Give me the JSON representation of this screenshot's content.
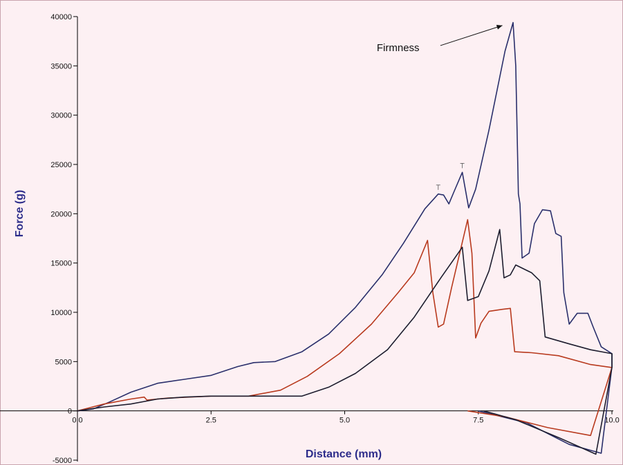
{
  "chart_data": {
    "type": "line",
    "xlabel": "Distance (mm)",
    "ylabel": "Force (g)",
    "xlim": [
      0,
      10
    ],
    "ylim": [
      -5000,
      40000
    ],
    "x_ticks": [
      "0.0",
      "2.5",
      "5.0",
      "7.5",
      "10.0"
    ],
    "x_tick_values": [
      0,
      2.5,
      5,
      7.5,
      10
    ],
    "y_ticks": [
      "-5000",
      "0",
      "5000",
      "10000",
      "15000",
      "20000",
      "25000",
      "30000",
      "35000",
      "40000"
    ],
    "y_tick_values": [
      -5000,
      0,
      5000,
      10000,
      15000,
      20000,
      25000,
      30000,
      35000,
      40000
    ],
    "grid": false,
    "annotations": [
      {
        "text": "Firmness",
        "x": 5.6,
        "y": 36500,
        "arrow_to": [
          7.95,
          39100
        ]
      }
    ],
    "series": [
      {
        "color": "#2a2f6b",
        "points": [
          [
            0,
            0
          ],
          [
            0.3,
            200
          ],
          [
            0.6,
            900
          ],
          [
            1.0,
            1900
          ],
          [
            1.5,
            2800
          ],
          [
            2.0,
            3200
          ],
          [
            2.5,
            3600
          ],
          [
            3.0,
            4500
          ],
          [
            3.3,
            4900
          ],
          [
            3.7,
            5000
          ],
          [
            4.2,
            6000
          ],
          [
            4.7,
            7800
          ],
          [
            5.2,
            10500
          ],
          [
            5.7,
            13800
          ],
          [
            6.1,
            17000
          ],
          [
            6.5,
            20500
          ],
          [
            6.75,
            22000
          ],
          [
            6.85,
            21900
          ],
          [
            6.95,
            21000
          ],
          [
            7.05,
            22300
          ],
          [
            7.2,
            24200
          ],
          [
            7.32,
            20600
          ],
          [
            7.45,
            22500
          ],
          [
            7.7,
            28500
          ],
          [
            8.0,
            36500
          ],
          [
            8.15,
            39400
          ],
          [
            8.2,
            35000
          ],
          [
            8.25,
            22000
          ],
          [
            8.28,
            21000
          ],
          [
            8.32,
            15500
          ],
          [
            8.45,
            16000
          ],
          [
            8.55,
            19000
          ],
          [
            8.7,
            20400
          ],
          [
            8.85,
            20300
          ],
          [
            8.95,
            18000
          ],
          [
            9.05,
            17700
          ],
          [
            9.1,
            12000
          ],
          [
            9.2,
            8800
          ],
          [
            9.35,
            9900
          ],
          [
            9.55,
            9900
          ],
          [
            9.65,
            8500
          ],
          [
            9.8,
            6500
          ],
          [
            10.0,
            5800
          ],
          [
            10.0,
            4500
          ],
          [
            9.8,
            -4300
          ],
          [
            9.2,
            -3400
          ],
          [
            8.4,
            -1200
          ],
          [
            7.5,
            0
          ]
        ]
      },
      {
        "color": "#b83a1e",
        "points": [
          [
            0,
            0
          ],
          [
            0.5,
            700
          ],
          [
            1.0,
            1200
          ],
          [
            1.25,
            1400
          ],
          [
            1.3,
            1100
          ],
          [
            1.7,
            1300
          ],
          [
            2.5,
            1500
          ],
          [
            3.2,
            1500
          ],
          [
            3.8,
            2100
          ],
          [
            4.3,
            3500
          ],
          [
            4.9,
            5800
          ],
          [
            5.5,
            8800
          ],
          [
            6.0,
            12000
          ],
          [
            6.3,
            14000
          ],
          [
            6.55,
            17300
          ],
          [
            6.65,
            12000
          ],
          [
            6.75,
            8500
          ],
          [
            6.85,
            8800
          ],
          [
            7.0,
            12500
          ],
          [
            7.3,
            19400
          ],
          [
            7.38,
            16000
          ],
          [
            7.45,
            7400
          ],
          [
            7.55,
            8900
          ],
          [
            7.7,
            10100
          ],
          [
            7.95,
            10300
          ],
          [
            8.1,
            10400
          ],
          [
            8.18,
            6000
          ],
          [
            8.5,
            5900
          ],
          [
            9.0,
            5600
          ],
          [
            9.6,
            4700
          ],
          [
            10.0,
            4400
          ],
          [
            9.6,
            -2500
          ],
          [
            8.8,
            -1700
          ],
          [
            8.0,
            -600
          ],
          [
            7.3,
            0
          ]
        ]
      },
      {
        "color": "#1d1d2e",
        "points": [
          [
            0,
            0
          ],
          [
            0.5,
            400
          ],
          [
            1.0,
            700
          ],
          [
            1.5,
            1200
          ],
          [
            2.0,
            1400
          ],
          [
            2.5,
            1500
          ],
          [
            3.5,
            1500
          ],
          [
            4.2,
            1500
          ],
          [
            4.7,
            2400
          ],
          [
            5.2,
            3800
          ],
          [
            5.8,
            6200
          ],
          [
            6.3,
            9500
          ],
          [
            6.8,
            13500
          ],
          [
            7.2,
            16600
          ],
          [
            7.3,
            11200
          ],
          [
            7.5,
            11600
          ],
          [
            7.7,
            14200
          ],
          [
            7.9,
            18400
          ],
          [
            7.98,
            13500
          ],
          [
            8.1,
            13800
          ],
          [
            8.2,
            14800
          ],
          [
            8.5,
            14000
          ],
          [
            8.65,
            13200
          ],
          [
            8.75,
            7500
          ],
          [
            9.2,
            6800
          ],
          [
            9.6,
            6200
          ],
          [
            10.0,
            5800
          ],
          [
            10.0,
            4400
          ],
          [
            9.7,
            -4400
          ],
          [
            9.0,
            -2700
          ],
          [
            8.2,
            -900
          ],
          [
            7.6,
            0
          ]
        ]
      }
    ]
  }
}
